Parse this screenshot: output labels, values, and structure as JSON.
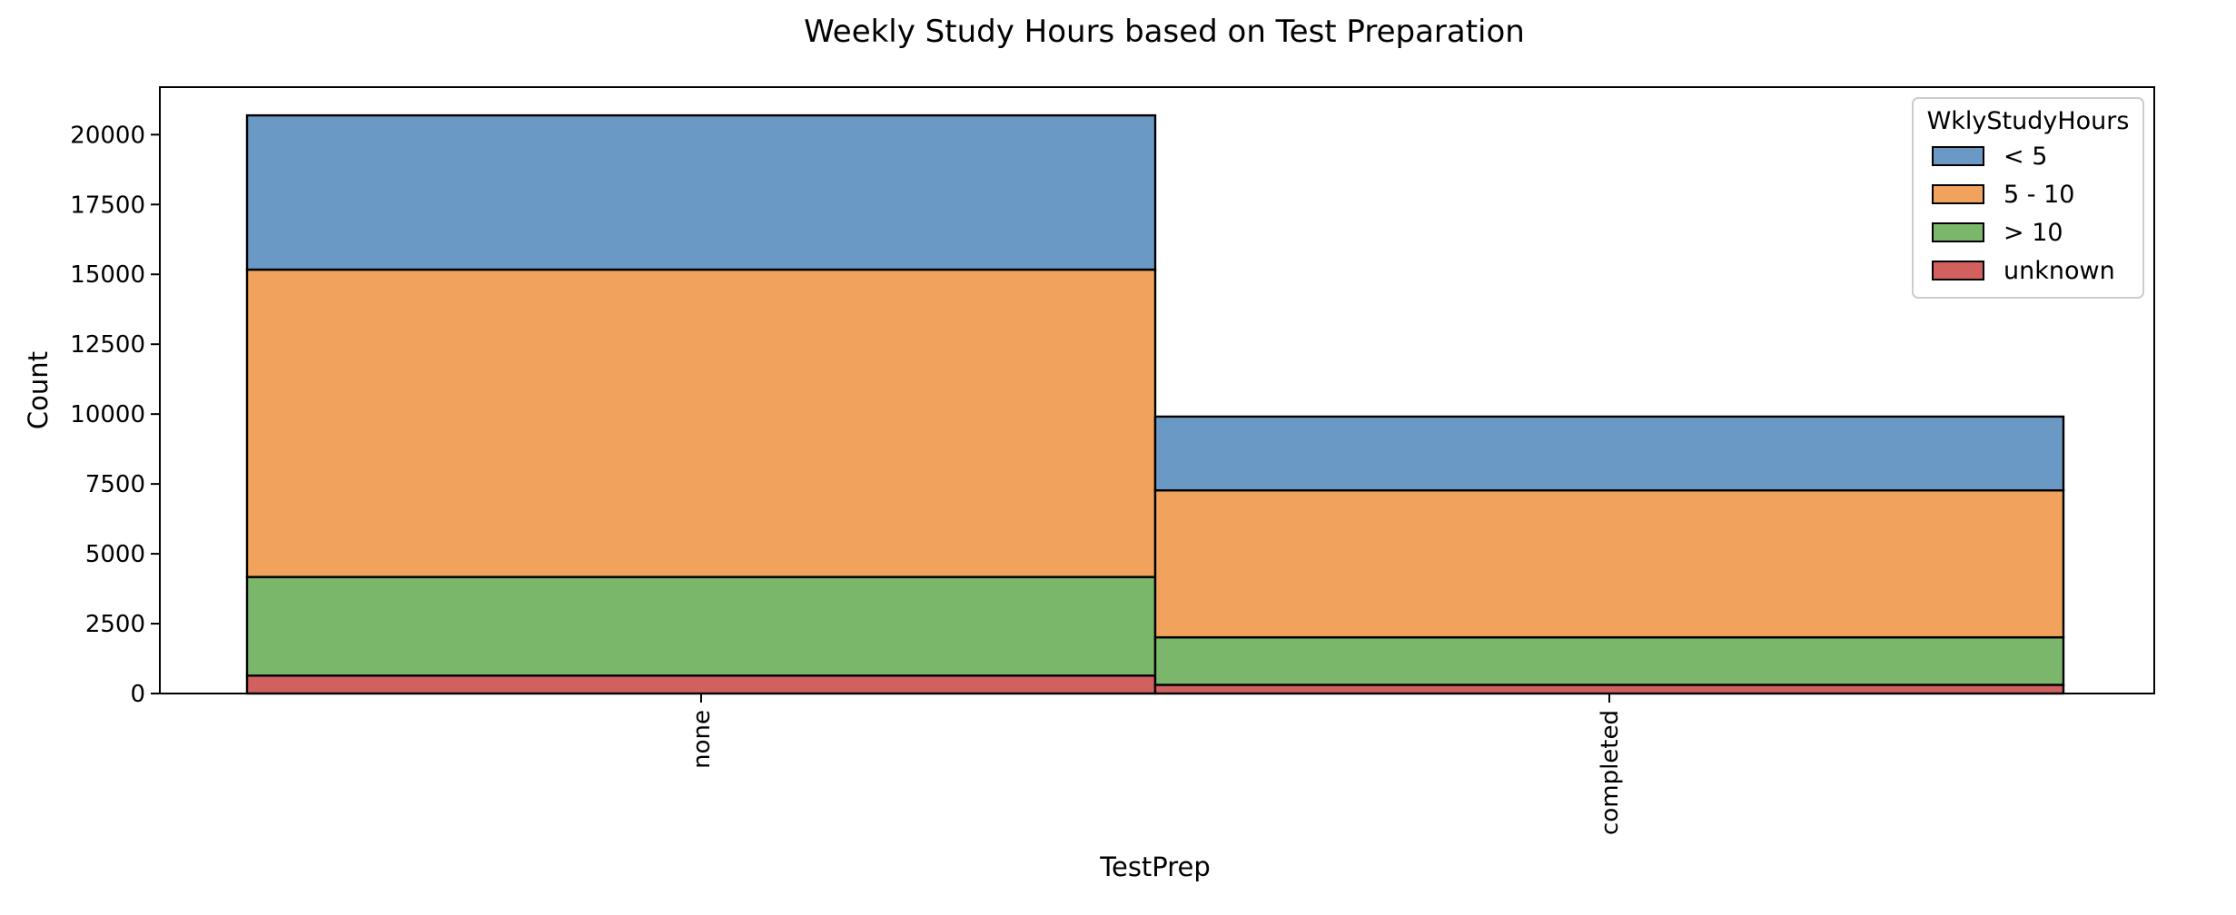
{
  "chart_data": {
    "type": "bar",
    "stacked": true,
    "title": "Weekly Study Hours based on Test Preparation",
    "xlabel": "TestPrep",
    "ylabel": "Count",
    "categories": [
      "none",
      "completed"
    ],
    "ylim": [
      0,
      21700
    ],
    "yticks": [
      0,
      2500,
      5000,
      7500,
      10000,
      12500,
      15000,
      17500,
      20000
    ],
    "grid": false,
    "legend": {
      "title": "WklyStudyHours",
      "placement": "top-right"
    },
    "series": [
      {
        "name": "< 5",
        "color": "#6999c4",
        "values": [
          5520,
          2640
        ]
      },
      {
        "name": "5 - 10",
        "color": "#f1a35d",
        "values": [
          11000,
          5260
        ]
      },
      {
        "name": "> 10",
        "color": "#7bb76a",
        "values": [
          3530,
          1700
        ]
      },
      {
        "name": "unknown",
        "color": "#d2605f",
        "values": [
          640,
          310
        ]
      }
    ]
  }
}
